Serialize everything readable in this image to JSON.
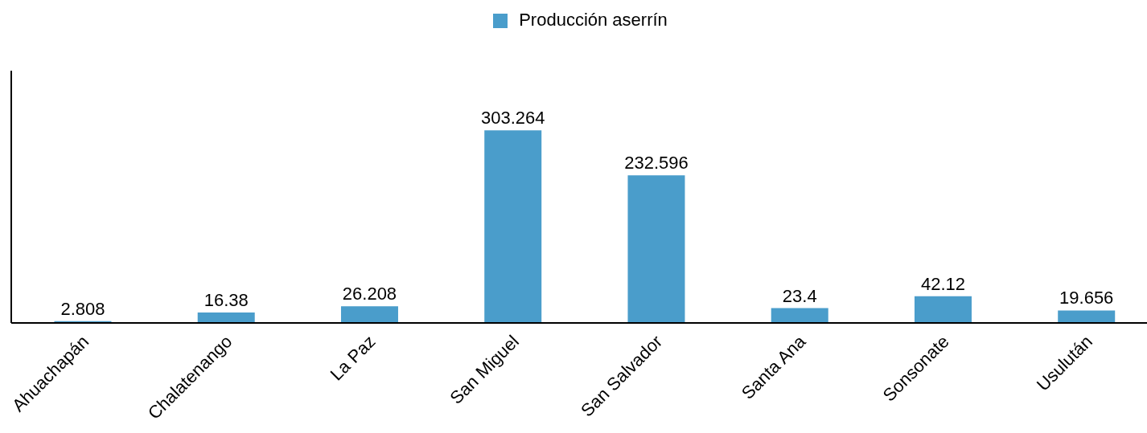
{
  "chart_data": {
    "type": "bar",
    "categories": [
      "Ahuachapán",
      "Chalatenango",
      "La Paz",
      "San Miguel",
      "San Salvador",
      "Santa Ana",
      "Sonsonate",
      "Usulután"
    ],
    "series": [
      {
        "name": "Producción aserrín",
        "color": "#4a9dcb",
        "values": [
          2.808,
          16.38,
          26.208,
          303.264,
          232.596,
          23.4,
          42.12,
          19.656
        ]
      }
    ],
    "data_labels": true,
    "legend": "top",
    "grid": false,
    "tick_labels": "x"
  }
}
